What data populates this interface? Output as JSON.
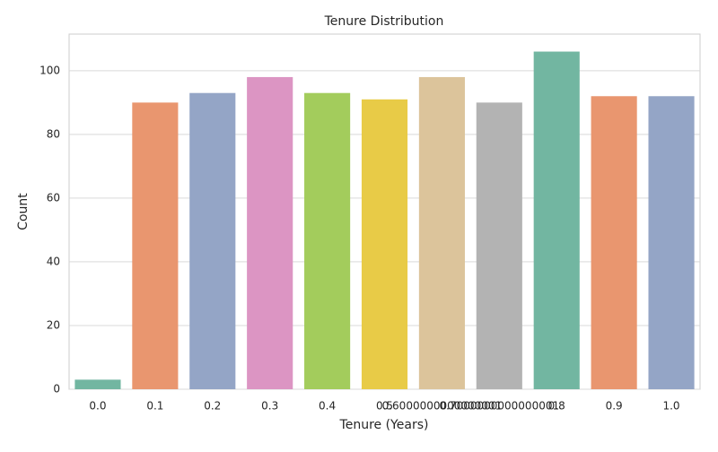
{
  "chart_data": {
    "type": "bar",
    "title": "Tenure Distribution",
    "x_label": "Tenure (Years)",
    "y_label": "Count",
    "categories": [
      "0.0",
      "0.1",
      "0.2",
      "0.3",
      "0.4",
      "0.5",
      "0.6000000000000001",
      "0.7000000000000001",
      "0.8",
      "0.9",
      "1.0"
    ],
    "values": [
      3,
      90,
      93,
      98,
      93,
      91,
      98,
      90,
      106,
      92,
      92
    ],
    "colors": [
      "#72b6a1",
      "#e9966f",
      "#94a5c6",
      "#dc95c3",
      "#a3cc5c",
      "#e8cb47",
      "#dcc49b",
      "#b3b3b3",
      "#72b6a1",
      "#e9966f",
      "#94a5c6"
    ],
    "ylim": [
      0,
      111.5
    ],
    "yticks": [
      0,
      20,
      40,
      60,
      80,
      100
    ],
    "grid": true
  }
}
